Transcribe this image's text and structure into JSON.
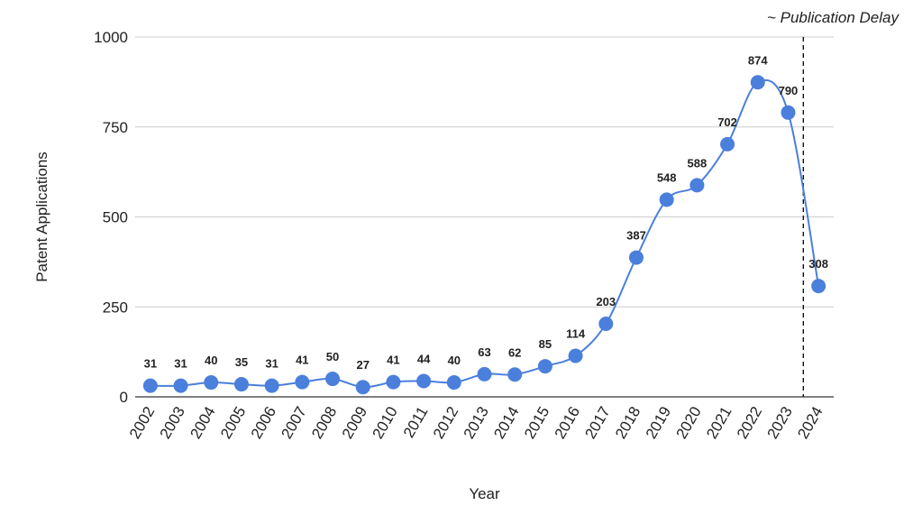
{
  "chart_data": {
    "type": "line",
    "title": "",
    "xlabel": "Year",
    "ylabel": "Patent Applications",
    "x": [
      "2002",
      "2003",
      "2004",
      "2005",
      "2006",
      "2007",
      "2008",
      "2009",
      "2010",
      "2011",
      "2012",
      "2013",
      "2014",
      "2015",
      "2016",
      "2017",
      "2018",
      "2019",
      "2020",
      "2021",
      "2022",
      "2023",
      "2024"
    ],
    "series": [
      {
        "values": [
          31,
          31,
          40,
          35,
          31,
          41,
          50,
          27,
          41,
          44,
          40,
          63,
          62,
          85,
          114,
          203,
          387,
          548,
          588,
          702,
          874,
          790,
          308
        ],
        "color": "#4a7fdc"
      }
    ],
    "data_labels": [
      "31",
      "31",
      "40",
      "35",
      "31",
      "41",
      "50",
      "27",
      "41",
      "44",
      "40",
      "63",
      "62",
      "85",
      "114",
      "203",
      "387",
      "548",
      "588",
      "702",
      "874",
      "790",
      "308"
    ],
    "ylim": [
      0,
      1000
    ],
    "yticks": [
      0,
      250,
      500,
      750,
      1000
    ],
    "ytick_labels": [
      "0",
      "250",
      "500",
      "750",
      "1000"
    ],
    "grid": true,
    "legend": "none",
    "annotation": {
      "text": "~ Publication Delay",
      "position_between": [
        "2023",
        "2024"
      ],
      "style": "dashed-vertical-line"
    }
  }
}
